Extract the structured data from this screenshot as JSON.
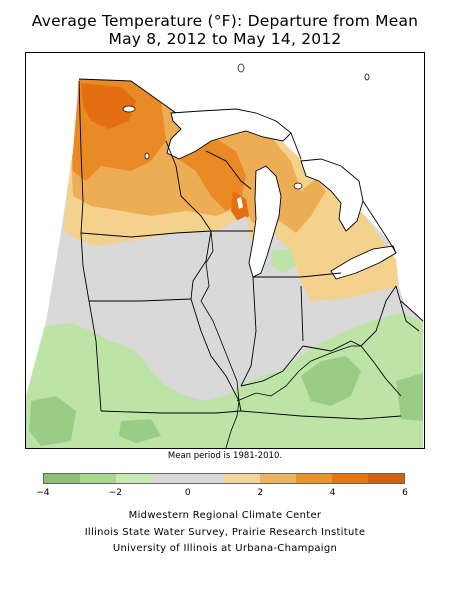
{
  "title_line1": "Average Temperature (°F): Departure from Mean",
  "title_line2": "May 8, 2012 to May 14, 2012",
  "mean_note": "Mean period is 1981-2010.",
  "legend": {
    "colors": [
      "#8cbf78",
      "#a9d78f",
      "#c9e9b3",
      "#d9d9d9",
      "#d9d9d9",
      "#f2d59a",
      "#eab35d",
      "#e9952c",
      "#e5770d",
      "#d0620a"
    ],
    "labels": [
      "−4",
      "−2",
      "0",
      "2",
      "4",
      "6"
    ]
  },
  "credits": [
    "Midwestern Regional Climate Center",
    "Illinois State Water Survey, Prairie Research Institute",
    "University of Illinois at Urbana-Champaign"
  ],
  "map_colors": {
    "gray": "#d9d9d9",
    "light_green": "#bde3a6",
    "green": "#99cc85",
    "dark_green": "#84b56f",
    "light_orange": "#f3d28d",
    "orange": "#ecad55",
    "deep_orange": "#e98a25",
    "red_orange": "#e46f10",
    "water": "#ffffff",
    "border": "#000000"
  }
}
